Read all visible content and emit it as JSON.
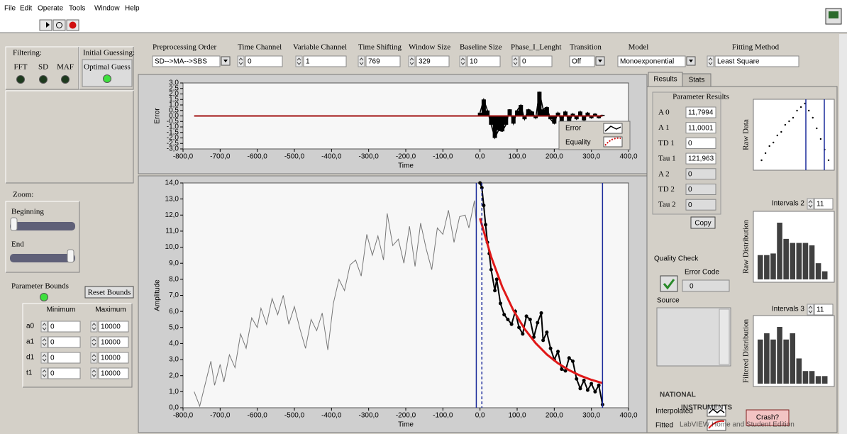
{
  "menu": [
    "File",
    "Edit",
    "Operate",
    "Tools",
    "Window",
    "Help"
  ],
  "filtering": {
    "label": "Filtering:",
    "filters": [
      "FFT",
      "SD",
      "MAF"
    ]
  },
  "initial_guessing": {
    "label": "Initial Guessing:",
    "option": "Optimal Guess"
  },
  "controls": [
    {
      "label": "Preprocessing Order",
      "value": "SD-->MA-->SBS"
    },
    {
      "label": "Time Channel",
      "value": "0"
    },
    {
      "label": "Variable Channel",
      "value": "1"
    },
    {
      "label": "Time Shifting",
      "value": "769"
    },
    {
      "label": "Window Size",
      "value": "329"
    },
    {
      "label": "Baseline Size",
      "value": "10"
    },
    {
      "label": "Phase_I_Lenght",
      "value": "0"
    },
    {
      "label": "Transition",
      "value": "Off"
    },
    {
      "label": "Model",
      "value": "Monoexponential"
    },
    {
      "label": "Fitting Method",
      "value": "Least Square"
    }
  ],
  "zoom": {
    "label": "Zoom:",
    "beginning": "Beginning",
    "end": "End"
  },
  "parameter_bounds": {
    "label": "Parameter Bounds",
    "reset": "Reset Bounds",
    "headers": [
      "Minimum",
      "Maximum"
    ],
    "rows": [
      {
        "name": "a0",
        "min": "0",
        "max": "10000"
      },
      {
        "name": "a1",
        "min": "0",
        "max": "10000"
      },
      {
        "name": "d1",
        "min": "0",
        "max": "10000"
      },
      {
        "name": "t1",
        "min": "0",
        "max": "10000"
      }
    ]
  },
  "error_chart": {
    "y_label": "Error",
    "x_label": "Time",
    "legend": [
      "Error",
      "Equality"
    ],
    "xlim": [
      -800,
      400
    ],
    "ylim": [
      -3,
      3
    ],
    "xticks": [
      {
        "value": -800,
        "label": "-800,0"
      },
      {
        "value": -700,
        "label": "-700,0"
      },
      {
        "value": -600,
        "label": "-600,0"
      },
      {
        "value": -500,
        "label": "-500,0"
      },
      {
        "value": -400,
        "label": "-400,0"
      },
      {
        "value": -300,
        "label": "-300,0"
      },
      {
        "value": -200,
        "label": "-200,0"
      },
      {
        "value": -100,
        "label": "-100,0"
      },
      {
        "value": 0,
        "label": "0,0"
      },
      {
        "value": 100,
        "label": "100,0"
      },
      {
        "value": 200,
        "label": "200,0"
      },
      {
        "value": 300,
        "label": "300,0"
      },
      {
        "value": 400,
        "label": "400,0"
      }
    ],
    "yticks": [
      {
        "value": 3,
        "label": "3,0"
      },
      {
        "value": 2.5,
        "label": "2,5"
      },
      {
        "value": 2,
        "label": "2,0"
      },
      {
        "value": 1.5,
        "label": "1,5"
      },
      {
        "value": 1,
        "label": "1,0"
      },
      {
        "value": 0.5,
        "label": "0,5"
      },
      {
        "value": 0,
        "label": "0,0"
      },
      {
        "value": -0.5,
        "label": "-0,5"
      },
      {
        "value": -1,
        "label": "-1,0"
      },
      {
        "value": -1.5,
        "label": "-1,5"
      },
      {
        "value": -2,
        "label": "-2,0"
      },
      {
        "value": -2.5,
        "label": "-2,5"
      },
      {
        "value": -3,
        "label": "-3,0"
      }
    ],
    "error": {
      "x": [
        0,
        10,
        20,
        30,
        40,
        50,
        60,
        70,
        80,
        90,
        100,
        110,
        120,
        130,
        140,
        150,
        160,
        170,
        180,
        190,
        200,
        210,
        220,
        230,
        240,
        250,
        260,
        270,
        280,
        290,
        300,
        310,
        320,
        330
      ],
      "y": [
        0.3,
        1.5,
        0.5,
        -0.8,
        -2.0,
        -1.3,
        -1.4,
        -0.8,
        0.6,
        -0.7,
        0.5,
        1.0,
        -0.3,
        0.6,
        0.4,
        -0.2,
        2.2,
        0.6,
        0.8,
        -0.3,
        -0.7,
        0.3,
        -0.5,
        0.4,
        -0.6,
        0.2,
        -0.3,
        0.4,
        -0.4,
        0.3,
        -0.2,
        0.2,
        -0.2,
        0.1
      ]
    },
    "equality": {
      "x": [
        -770,
        330
      ],
      "y": [
        0,
        0
      ]
    }
  },
  "amplitude_chart": {
    "y_label": "Amplitude",
    "x_label": "Time",
    "xlim": [
      -800,
      400
    ],
    "ylim": [
      0,
      14
    ],
    "xticks": [
      {
        "value": -800,
        "label": "-800,0"
      },
      {
        "value": -700,
        "label": "-700,0"
      },
      {
        "value": -600,
        "label": "-600,0"
      },
      {
        "value": -500,
        "label": "-500,0"
      },
      {
        "value": -400,
        "label": "-400,0"
      },
      {
        "value": -300,
        "label": "-300,0"
      },
      {
        "value": -200,
        "label": "-200,0"
      },
      {
        "value": -100,
        "label": "-100,0"
      },
      {
        "value": 0,
        "label": "0,0"
      },
      {
        "value": 100,
        "label": "100,0"
      },
      {
        "value": 200,
        "label": "200,0"
      },
      {
        "value": 300,
        "label": "300,0"
      },
      {
        "value": 400,
        "label": "400,0"
      }
    ],
    "yticks": [
      {
        "value": 0,
        "label": "0,0"
      },
      {
        "value": 1,
        "label": "1,0"
      },
      {
        "value": 2,
        "label": "2,0"
      },
      {
        "value": 3,
        "label": "3,0"
      },
      {
        "value": 4,
        "label": "4,0"
      },
      {
        "value": 5,
        "label": "5,0"
      },
      {
        "value": 6,
        "label": "6,0"
      },
      {
        "value": 7,
        "label": "7,0"
      },
      {
        "value": 8,
        "label": "8,0"
      },
      {
        "value": 9,
        "label": "9,0"
      },
      {
        "value": 10,
        "label": "10,0"
      },
      {
        "value": 11,
        "label": "11,0"
      },
      {
        "value": 12,
        "label": "12,0"
      },
      {
        "value": 13,
        "label": "13,0"
      },
      {
        "value": 14,
        "label": "14,0"
      }
    ],
    "raw": {
      "x": [
        -770,
        -755,
        -740,
        -725,
        -715,
        -700,
        -690,
        -675,
        -660,
        -645,
        -630,
        -615,
        -600,
        -590,
        -575,
        -560,
        -545,
        -530,
        -515,
        -500,
        -485,
        -470,
        -455,
        -440,
        -425,
        -410,
        -395,
        -380,
        -365,
        -350,
        -335,
        -320,
        -305,
        -290,
        -275,
        -260,
        -250,
        -235,
        -220,
        -205,
        -190,
        -175,
        -160,
        -145,
        -130,
        -115,
        -100,
        -85,
        -70,
        -55,
        -40,
        -30,
        -15,
        -10
      ],
      "y": [
        1.0,
        0.1,
        1.5,
        2.9,
        1.4,
        2.7,
        1.6,
        3.3,
        2.5,
        4.6,
        3.7,
        5.6,
        5.0,
        6.2,
        5.2,
        6.8,
        5.8,
        7.0,
        5.2,
        6.3,
        4.9,
        3.7,
        5.5,
        4.8,
        5.9,
        3.6,
        6.5,
        8.0,
        7.3,
        8.9,
        9.2,
        8.2,
        10.8,
        9.5,
        10.7,
        9.2,
        12.1,
        10.1,
        10.5,
        9.0,
        11.3,
        8.8,
        11.5,
        9.9,
        8.6,
        11.2,
        10.8,
        12.3,
        10.3,
        11.9,
        12.0,
        11.2,
        12.9,
        11.5
      ]
    },
    "measured": {
      "x": [
        0,
        5,
        10,
        15,
        20,
        25,
        30,
        40,
        45,
        55,
        65,
        75,
        85,
        95,
        105,
        115,
        125,
        135,
        145,
        155,
        165,
        170,
        180,
        190,
        200,
        210,
        220,
        230,
        240,
        250,
        260,
        270,
        280,
        290,
        300,
        310,
        320,
        330
      ],
      "y": [
        14.0,
        13.7,
        12.6,
        11.4,
        10.3,
        9.6,
        8.6,
        7.3,
        8.0,
        6.5,
        5.8,
        5.5,
        5.2,
        6.0,
        5.0,
        4.6,
        5.7,
        5.5,
        4.4,
        5.3,
        5.9,
        4.2,
        4.7,
        3.7,
        3.0,
        3.5,
        2.4,
        2.3,
        3.1,
        2.9,
        1.8,
        1.2,
        1.7,
        1.1,
        1.5,
        1.0,
        1.4,
        0.2
      ]
    },
    "fit": {
      "x": [
        0,
        30,
        60,
        90,
        120,
        150,
        180,
        210,
        240,
        270,
        300,
        330
      ],
      "y": [
        11.8,
        9.4,
        7.52,
        6.06,
        4.91,
        4.02,
        3.32,
        2.77,
        2.34,
        2.0,
        1.74,
        1.54
      ]
    },
    "cursors": [
      -10,
      5,
      330
    ]
  },
  "results": {
    "tabs": [
      "Results",
      "Stats"
    ],
    "title": "Parameter Results",
    "parameters": [
      {
        "name": "A 0",
        "value": "11,7994"
      },
      {
        "name": "A 1",
        "value": "11,0001"
      },
      {
        "name": "TD 1",
        "value": "0"
      },
      {
        "name": "Tau 1",
        "value": "121,963"
      },
      {
        "name": "A 2",
        "value": "0"
      },
      {
        "name": "TD 2",
        "value": "0"
      },
      {
        "name": "Tau 2",
        "value": "0"
      }
    ],
    "copy": "Copy",
    "quality_check": "Quality Check",
    "error_code_label": "Error Code",
    "error_code": "0",
    "source": "Source",
    "raw_data": {
      "label": "Raw Data",
      "x": [
        1,
        2,
        3,
        4,
        5,
        6,
        7,
        8,
        9,
        10,
        11,
        12,
        13,
        14,
        15,
        16,
        17,
        18
      ],
      "y": [
        1,
        2,
        3,
        3.5,
        4.5,
        5,
        6,
        6.5,
        7,
        8,
        8.5,
        9,
        8,
        7,
        5.5,
        4,
        2.5,
        1
      ]
    },
    "raw_distribution": {
      "label": "Raw Distribution",
      "intervals_label": "Intervals 2",
      "intervals": "11",
      "counts": [
        3,
        3,
        3.2,
        7,
        5,
        4.5,
        4.5,
        4.5,
        4.2,
        2,
        1
      ]
    },
    "filtered_distribution": {
      "label": "Filtered Distribution",
      "intervals_label": "Intervals 3",
      "intervals": "11",
      "counts": [
        7,
        8,
        7,
        9,
        7,
        8,
        4,
        2,
        2,
        1.2,
        1.2
      ]
    },
    "legend": [
      "Interpolated",
      "Fitted"
    ],
    "crash": "Crash?"
  },
  "watermark": [
    "NATIONAL",
    "INSTRUMENTS",
    "LabVIEW Home and Student Edition"
  ]
}
